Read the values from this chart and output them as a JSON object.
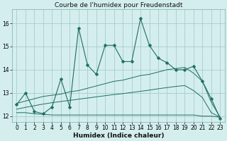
{
  "title": "Courbe de l'humidex pour Freudenstadt",
  "xlabel": "Humidex (Indice chaleur)",
  "bg_color": "#d4eeee",
  "grid_color": "#a8cccc",
  "line_color": "#1e6e60",
  "xlim": [
    -0.5,
    23.5
  ],
  "ylim": [
    11.75,
    16.6
  ],
  "yticks": [
    12,
    13,
    14,
    15,
    16
  ],
  "xticks": [
    0,
    1,
    2,
    3,
    4,
    5,
    6,
    7,
    8,
    9,
    10,
    11,
    12,
    13,
    14,
    15,
    16,
    17,
    18,
    19,
    20,
    21,
    22,
    23
  ],
  "main_x": [
    0,
    1,
    2,
    3,
    4,
    5,
    6,
    7,
    8,
    9,
    10,
    11,
    12,
    13,
    14,
    15,
    16,
    17,
    18,
    19,
    20,
    21,
    22,
    23
  ],
  "main_y": [
    12.5,
    13.0,
    12.2,
    12.1,
    12.4,
    13.6,
    12.4,
    15.8,
    14.2,
    13.8,
    15.05,
    15.05,
    14.35,
    14.35,
    16.2,
    15.05,
    14.5,
    14.3,
    14.0,
    14.0,
    14.15,
    13.5,
    12.75,
    11.9
  ],
  "line_upper_x": [
    0,
    1,
    2,
    3,
    4,
    5,
    6,
    7,
    8,
    9,
    10,
    11,
    12,
    13,
    14,
    15,
    16,
    17,
    18,
    19,
    20,
    21,
    22,
    23
  ],
  "line_upper_y": [
    12.55,
    12.65,
    12.75,
    12.85,
    12.9,
    12.95,
    13.05,
    13.1,
    13.2,
    13.3,
    13.4,
    13.5,
    13.55,
    13.65,
    13.75,
    13.8,
    13.9,
    14.0,
    14.05,
    14.1,
    13.85,
    13.5,
    12.6,
    11.95
  ],
  "line_mid_x": [
    0,
    1,
    2,
    3,
    4,
    5,
    6,
    7,
    8,
    9,
    10,
    11,
    12,
    13,
    14,
    15,
    16,
    17,
    18,
    19,
    20,
    21,
    22,
    23
  ],
  "line_mid_y": [
    12.3,
    12.38,
    12.45,
    12.52,
    12.58,
    12.63,
    12.68,
    12.73,
    12.78,
    12.83,
    12.88,
    12.93,
    12.97,
    13.02,
    13.07,
    13.12,
    13.18,
    13.23,
    13.28,
    13.32,
    13.1,
    12.8,
    12.15,
    11.95
  ],
  "line_flat_x": [
    0,
    1,
    2,
    3,
    4,
    5,
    6,
    7,
    8,
    9,
    10,
    11,
    12,
    13,
    14,
    15,
    16,
    17,
    18,
    19,
    20,
    21,
    22,
    23
  ],
  "line_flat_y": [
    12.15,
    12.15,
    12.1,
    12.08,
    12.05,
    12.05,
    12.05,
    12.05,
    12.05,
    12.05,
    12.05,
    12.05,
    12.05,
    12.05,
    12.05,
    12.05,
    12.05,
    12.05,
    12.05,
    12.05,
    12.05,
    12.0,
    12.0,
    11.95
  ],
  "title_fontsize": 6.5,
  "axis_fontsize": 6.5,
  "tick_fontsize": 5.5
}
